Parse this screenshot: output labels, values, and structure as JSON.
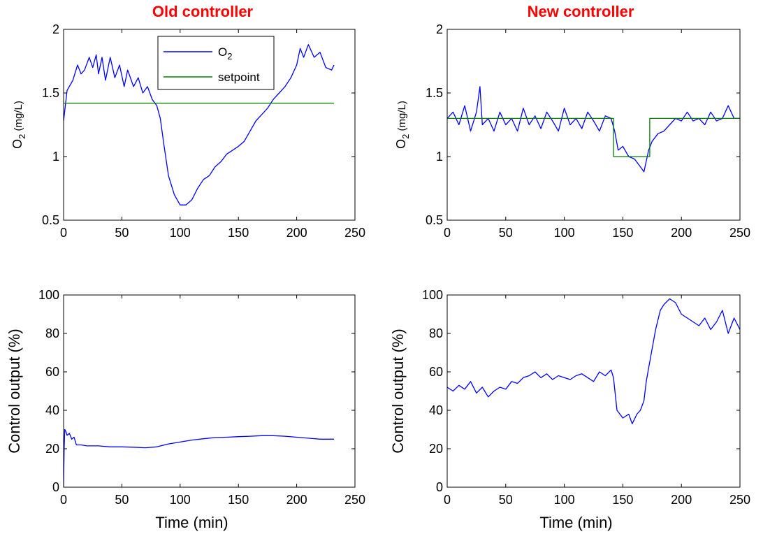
{
  "column_titles": {
    "left": "Old controller",
    "right": "New controller",
    "color": "#ff0000"
  },
  "colors": {
    "o2_line": "#0000ff",
    "setpoint_line": "#008000",
    "axes": "#000000"
  },
  "chart_data": [
    {
      "id": "old-o2",
      "type": "line",
      "ylabel": "O2 (mg/L)",
      "xlabel": "",
      "xlim": [
        0,
        250
      ],
      "ylim": [
        0.5,
        2
      ],
      "xticks": [
        "0",
        "50",
        "100",
        "150",
        "200",
        "250"
      ],
      "yticks": [
        "0.5",
        "1",
        "1.5",
        "2"
      ],
      "legend": {
        "placement": "top-center",
        "entries": [
          "O2",
          "setpoint"
        ]
      },
      "series": [
        {
          "name": "O2",
          "color": "#0000ff",
          "x": [
            0,
            3,
            8,
            12,
            15,
            18,
            22,
            25,
            28,
            30,
            33,
            36,
            40,
            44,
            48,
            52,
            55,
            60,
            64,
            68,
            72,
            76,
            80,
            83,
            86,
            90,
            95,
            100,
            105,
            110,
            115,
            120,
            125,
            130,
            135,
            140,
            145,
            150,
            155,
            160,
            165,
            170,
            175,
            180,
            185,
            190,
            195,
            200,
            203,
            206,
            210,
            215,
            220,
            225,
            230,
            232
          ],
          "y": [
            1.28,
            1.52,
            1.6,
            1.72,
            1.65,
            1.68,
            1.78,
            1.7,
            1.8,
            1.65,
            1.78,
            1.6,
            1.78,
            1.62,
            1.72,
            1.55,
            1.68,
            1.55,
            1.62,
            1.5,
            1.55,
            1.45,
            1.4,
            1.3,
            1.1,
            0.85,
            0.7,
            0.62,
            0.62,
            0.66,
            0.75,
            0.82,
            0.85,
            0.92,
            0.96,
            1.02,
            1.05,
            1.08,
            1.12,
            1.2,
            1.28,
            1.33,
            1.38,
            1.45,
            1.5,
            1.55,
            1.62,
            1.72,
            1.85,
            1.78,
            1.88,
            1.78,
            1.82,
            1.7,
            1.68,
            1.72
          ]
        },
        {
          "name": "setpoint",
          "color": "#008000",
          "x": [
            0,
            232
          ],
          "y": [
            1.42,
            1.42
          ]
        }
      ]
    },
    {
      "id": "new-o2",
      "type": "line",
      "ylabel": "O2 (mg/L)",
      "xlabel": "",
      "xlim": [
        0,
        250
      ],
      "ylim": [
        0.5,
        2
      ],
      "xticks": [
        "0",
        "50",
        "100",
        "150",
        "200",
        "250"
      ],
      "yticks": [
        "0.5",
        "1",
        "1.5",
        "2"
      ],
      "series": [
        {
          "name": "O2",
          "color": "#0000ff",
          "x": [
            0,
            5,
            10,
            15,
            20,
            25,
            28,
            30,
            35,
            40,
            45,
            50,
            55,
            60,
            65,
            70,
            75,
            80,
            85,
            90,
            95,
            100,
            105,
            110,
            115,
            120,
            125,
            130,
            135,
            140,
            143,
            146,
            150,
            155,
            160,
            165,
            168,
            172,
            175,
            180,
            185,
            190,
            195,
            200,
            205,
            210,
            215,
            220,
            225,
            230,
            235,
            240,
            245,
            250
          ],
          "y": [
            1.3,
            1.35,
            1.25,
            1.4,
            1.2,
            1.35,
            1.55,
            1.25,
            1.3,
            1.2,
            1.35,
            1.25,
            1.3,
            1.2,
            1.38,
            1.25,
            1.32,
            1.22,
            1.35,
            1.28,
            1.2,
            1.38,
            1.25,
            1.3,
            1.22,
            1.35,
            1.28,
            1.2,
            1.32,
            1.3,
            1.2,
            1.05,
            1.08,
            1.0,
            0.98,
            0.92,
            0.88,
            1.05,
            1.12,
            1.18,
            1.2,
            1.25,
            1.3,
            1.28,
            1.35,
            1.28,
            1.3,
            1.25,
            1.35,
            1.28,
            1.3,
            1.4,
            1.3,
            1.3
          ]
        },
        {
          "name": "setpoint",
          "color": "#008000",
          "x": [
            0,
            142,
            142,
            173,
            173,
            250
          ],
          "y": [
            1.3,
            1.3,
            1.0,
            1.0,
            1.3,
            1.3
          ]
        }
      ]
    },
    {
      "id": "old-control",
      "type": "line",
      "ylabel": "Control output (%)",
      "xlabel": "Time (min)",
      "xlim": [
        0,
        250
      ],
      "ylim": [
        0,
        100
      ],
      "xticks": [
        "0",
        "50",
        "100",
        "150",
        "200",
        "250"
      ],
      "yticks": [
        "0",
        "20",
        "40",
        "60",
        "80",
        "100"
      ],
      "series": [
        {
          "name": "Control output",
          "color": "#0000ff",
          "x": [
            0,
            0.5,
            1,
            2,
            3,
            5,
            7,
            9,
            11,
            15,
            20,
            30,
            40,
            50,
            60,
            70,
            80,
            90,
            100,
            110,
            120,
            130,
            140,
            150,
            160,
            170,
            180,
            190,
            200,
            210,
            220,
            232
          ],
          "y": [
            0,
            20,
            30,
            29,
            27,
            28,
            25,
            26,
            22,
            22,
            21.5,
            21.5,
            21,
            21,
            20.8,
            20.5,
            21,
            22.5,
            23.5,
            24.5,
            25.2,
            25.8,
            26,
            26.3,
            26.5,
            26.8,
            26.8,
            26.5,
            26,
            25.5,
            25,
            25
          ]
        }
      ]
    },
    {
      "id": "new-control",
      "type": "line",
      "ylabel": "Control output (%)",
      "xlabel": "Time (min)",
      "xlim": [
        0,
        250
      ],
      "ylim": [
        0,
        100
      ],
      "xticks": [
        "0",
        "50",
        "100",
        "150",
        "200",
        "250"
      ],
      "yticks": [
        "0",
        "20",
        "40",
        "60",
        "80",
        "100"
      ],
      "series": [
        {
          "name": "Control output",
          "color": "#0000ff",
          "x": [
            0,
            5,
            10,
            15,
            20,
            25,
            30,
            35,
            40,
            45,
            50,
            55,
            60,
            65,
            70,
            75,
            80,
            85,
            90,
            95,
            100,
            105,
            110,
            115,
            120,
            125,
            130,
            135,
            140,
            142,
            145,
            150,
            155,
            158,
            162,
            165,
            168,
            170,
            172,
            175,
            178,
            182,
            185,
            190,
            195,
            200,
            205,
            210,
            215,
            220,
            225,
            230,
            235,
            240,
            245,
            250
          ],
          "y": [
            52,
            50,
            53,
            51,
            55,
            49,
            52,
            47,
            50,
            52,
            51,
            55,
            54,
            57,
            58,
            60,
            57,
            59,
            56,
            58,
            57,
            56,
            58,
            59,
            57,
            55,
            60,
            58,
            61,
            57,
            40,
            36,
            38,
            33,
            38,
            40,
            45,
            55,
            62,
            72,
            82,
            92,
            95,
            98,
            96,
            90,
            88,
            86,
            84,
            88,
            82,
            86,
            92,
            80,
            88,
            82
          ]
        }
      ]
    }
  ]
}
